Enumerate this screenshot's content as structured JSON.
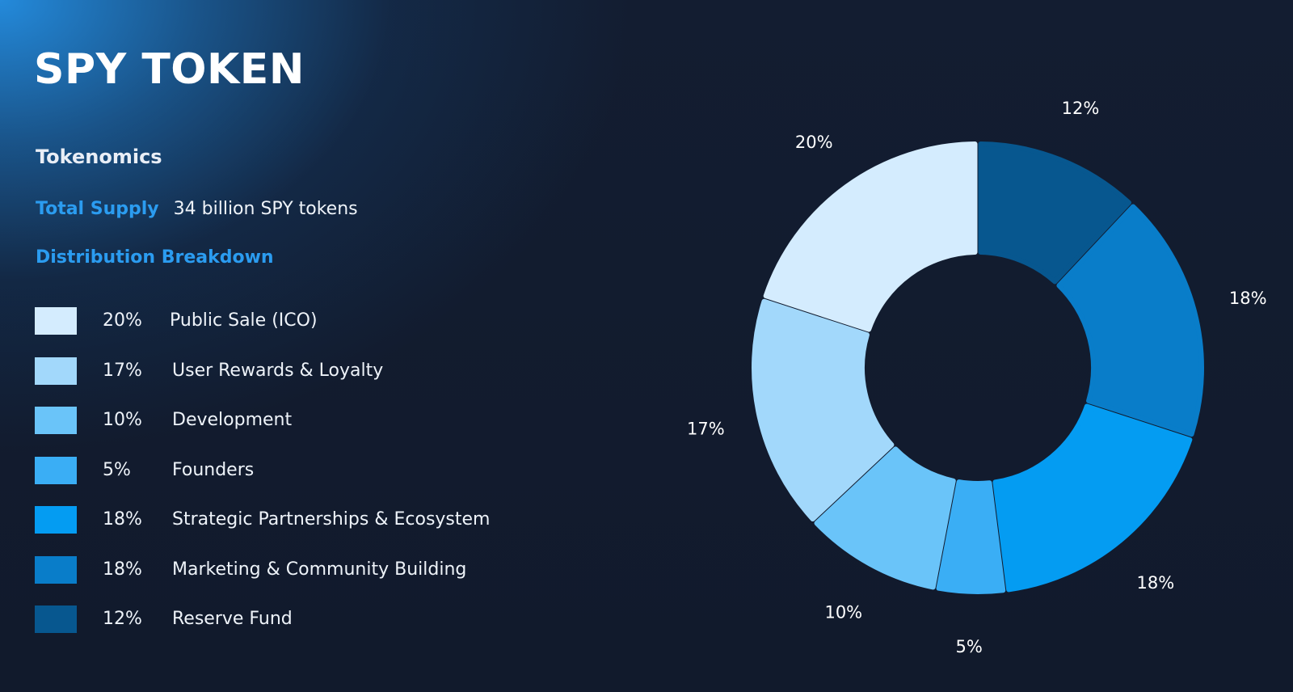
{
  "title": "SPY TOKEN",
  "subtitle": "Tokenomics",
  "total_supply": {
    "label": "Total Supply",
    "value": "34 billion SPY tokens"
  },
  "breakdown_heading": "Distribution Breakdown",
  "legend": [
    {
      "percent": "20%",
      "label": "Public Sale (ICO)",
      "color": "#d4ecfe"
    },
    {
      "percent": "17%",
      "label": "User Rewards & Loyalty",
      "color": "#a2d8fb"
    },
    {
      "percent": "10%",
      "label": "Development",
      "color": "#6ac4f9"
    },
    {
      "percent": "5%",
      "label": "Founders",
      "color": "#3aaef5"
    },
    {
      "percent": "18%",
      "label": "Strategic Partnerships & Ecosystem",
      "color": "#049cf2"
    },
    {
      "percent": "18%",
      "label": "Marketing & Community Building",
      "color": "#097dc9"
    },
    {
      "percent": "12%",
      "label": "Reserve Fund",
      "color": "#07578f"
    }
  ],
  "chart_data": {
    "type": "pie",
    "variant": "donut",
    "title": "",
    "start": "top",
    "direction": "clockwise",
    "slices": [
      {
        "label": "Reserve Fund",
        "value": 12,
        "display": "12%",
        "color": "#07578f"
      },
      {
        "label": "Marketing & Community Building",
        "value": 18,
        "display": "18%",
        "color": "#097dc9"
      },
      {
        "label": "Strategic Partnerships & Ecosystem",
        "value": 18,
        "display": "18%",
        "color": "#049cf2"
      },
      {
        "label": "Founders",
        "value": 5,
        "display": "5%",
        "color": "#3aaef5"
      },
      {
        "label": "Development",
        "value": 10,
        "display": "10%",
        "color": "#6ac4f9"
      },
      {
        "label": "User Rewards & Loyalty",
        "value": 17,
        "display": "17%",
        "color": "#a2d8fb"
      },
      {
        "label": "Public Sale (ICO)",
        "value": 20,
        "display": "20%",
        "color": "#d4ecfe"
      }
    ]
  }
}
